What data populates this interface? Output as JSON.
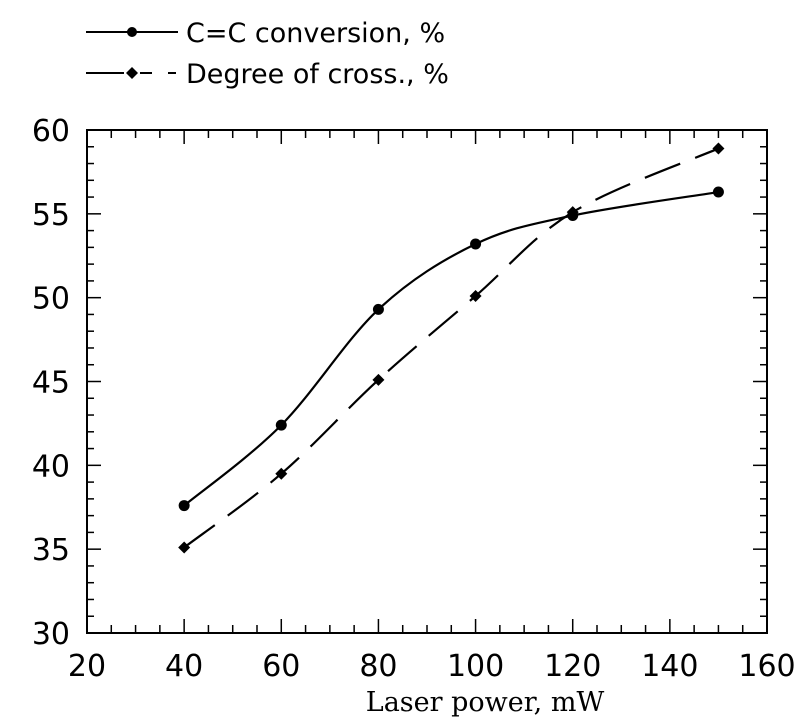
{
  "chart_data": {
    "type": "line",
    "xlabel": "Laser power, mW",
    "ylabel": "",
    "xlim": [
      20,
      160
    ],
    "ylim": [
      30,
      60
    ],
    "x_ticks": [
      "20",
      "40",
      "60",
      "80",
      "100",
      "120",
      "140",
      "160"
    ],
    "y_ticks": [
      "30",
      "35",
      "40",
      "45",
      "50",
      "55",
      "60"
    ],
    "grid": false,
    "legend_position": "top-left",
    "series": [
      {
        "name": "C=C conversion, %",
        "marker": "circle",
        "line_style": "solid",
        "color": "#000000",
        "x": [
          40,
          60,
          80,
          100,
          120,
          150
        ],
        "y": [
          37.6,
          42.4,
          49.3,
          53.2,
          54.9,
          56.3
        ]
      },
      {
        "name": "Degree of cross., %",
        "marker": "diamond",
        "line_style": "dashed",
        "color": "#000000",
        "x": [
          40,
          60,
          80,
          100,
          120,
          150
        ],
        "y": [
          35.1,
          39.5,
          45.1,
          50.1,
          55.1,
          58.9
        ]
      }
    ]
  }
}
